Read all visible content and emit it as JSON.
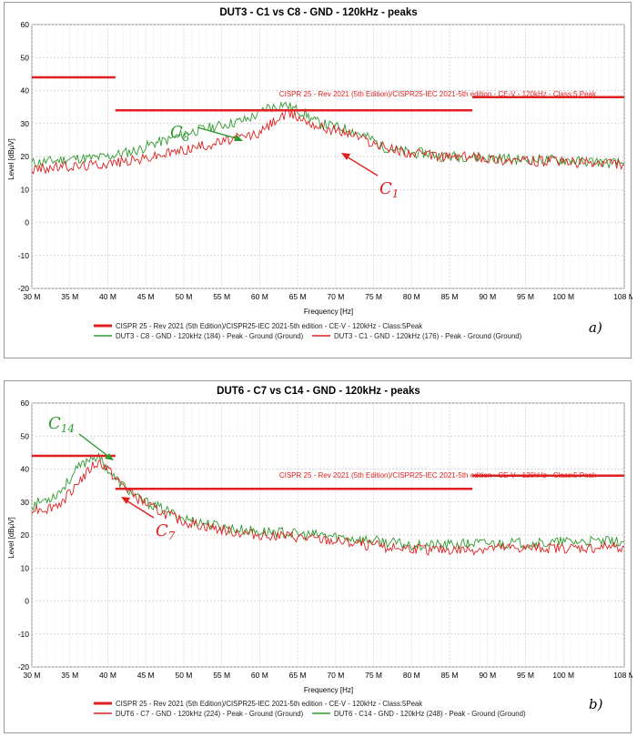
{
  "chart_data": [
    {
      "type": "line",
      "title": "DUT3 - C1 vs C8 - GND - 120kHz - peaks",
      "xlabel": "Frequency [Hz]",
      "ylabel": "Level [dBµV]",
      "xlim": [
        30,
        108
      ],
      "ylim": [
        -20,
        60
      ],
      "x_ticks": [
        30,
        35,
        40,
        45,
        50,
        55,
        60,
        65,
        70,
        75,
        80,
        85,
        90,
        95,
        100,
        108
      ],
      "x_tick_labels": [
        "30 M",
        "35 M",
        "40 M",
        "45 M",
        "50 M",
        "55 M",
        "60 M",
        "65 M",
        "70 M",
        "75 M",
        "80 M",
        "85 M",
        "90 M",
        "95 M",
        "100 M",
        "108 M"
      ],
      "y_ticks": [
        -20,
        -10,
        0,
        10,
        20,
        30,
        40,
        50,
        60
      ],
      "y_tick_labels": [
        "-20",
        "-10",
        "0",
        "10",
        "20",
        "30",
        "40",
        "50",
        "60"
      ],
      "grid": true,
      "limit_label": "CISPR 25 - Rev 2021 (5th Edition)/CISPR25-IEC 2021-5th edition - CE-V - 120kHz - Class:5 Peak",
      "limit_segments": [
        {
          "x": [
            30,
            41
          ],
          "y": [
            44,
            44
          ]
        },
        {
          "x": [
            41,
            88
          ],
          "y": [
            34,
            34
          ]
        },
        {
          "x": [
            88,
            108
          ],
          "y": [
            38,
            38
          ]
        }
      ],
      "series": [
        {
          "name": "DUT3 - C8 - GND - 120kHz (184) - Peak - Ground (Ground)",
          "color": "#2e9a2e",
          "x": [
            30,
            32,
            34,
            36,
            38,
            40,
            42,
            44,
            46,
            48,
            50,
            52,
            54,
            56,
            58,
            60,
            61,
            62,
            63,
            64,
            65,
            66,
            67,
            68,
            70,
            72,
            74,
            75,
            76,
            78,
            80,
            82,
            84,
            86,
            88,
            90,
            92,
            94,
            96,
            98,
            100,
            102,
            104,
            106,
            108
          ],
          "y": [
            18,
            18.5,
            19,
            19.5,
            19.5,
            20,
            21,
            22,
            24,
            25,
            27,
            28,
            29,
            30,
            31,
            33,
            35,
            35,
            36,
            35,
            34,
            33,
            31,
            30,
            29,
            28,
            26,
            25,
            23,
            22,
            21,
            21,
            20,
            20,
            20,
            19.5,
            19.5,
            19,
            19,
            19,
            19,
            18.5,
            18.5,
            18,
            18
          ]
        },
        {
          "name": "DUT3 - C1 - GND - 120kHz (176) - Peak - Ground (Ground)",
          "color": "#e02020",
          "x": [
            30,
            32,
            34,
            36,
            38,
            40,
            42,
            44,
            46,
            48,
            50,
            52,
            54,
            56,
            58,
            60,
            61,
            62,
            63,
            64,
            65,
            66,
            67,
            68,
            70,
            72,
            74,
            75,
            76,
            78,
            80,
            82,
            84,
            86,
            88,
            90,
            92,
            94,
            96,
            98,
            100,
            102,
            104,
            106,
            108
          ],
          "y": [
            16,
            16.5,
            17,
            17,
            17.5,
            18,
            18.5,
            19,
            20,
            21,
            22,
            23,
            24,
            25,
            26,
            27,
            29,
            31,
            32,
            33,
            32,
            31,
            30,
            29,
            28,
            27,
            25,
            24,
            23,
            22,
            21,
            20.5,
            20,
            20,
            20,
            19.5,
            19,
            19,
            18.5,
            18.5,
            18.5,
            18,
            18,
            18,
            17.5
          ]
        }
      ],
      "legend_placement": "bottom",
      "legend_limit_text": "CISPR 25 - Rev 2021 (5th Edition)/CISPR25-IEC 2021-5th edition - CE-V - 120kHz - Class:5Peak",
      "annotations": [
        {
          "label": "C",
          "sub": "8",
          "color": "#2e9a2e"
        },
        {
          "label": "C",
          "sub": "1",
          "color": "#e02020"
        }
      ],
      "panel_tag": "a)"
    },
    {
      "type": "line",
      "title": "DUT6 - C7 vs C14 - GND - 120kHz - peaks",
      "xlabel": "Frequency [Hz]",
      "ylabel": "Level [dBµV]",
      "xlim": [
        30,
        108
      ],
      "ylim": [
        -20,
        60
      ],
      "x_ticks": [
        30,
        35,
        40,
        45,
        50,
        55,
        60,
        65,
        70,
        75,
        80,
        85,
        90,
        95,
        100,
        108
      ],
      "x_tick_labels": [
        "30 M",
        "35 M",
        "40 M",
        "45 M",
        "50 M",
        "55 M",
        "60 M",
        "65 M",
        "70 M",
        "75 M",
        "80 M",
        "85 M",
        "90 M",
        "95 M",
        "100 M",
        "108 M"
      ],
      "y_ticks": [
        -20,
        -10,
        0,
        10,
        20,
        30,
        40,
        50,
        60
      ],
      "y_tick_labels": [
        "-20",
        "-10",
        "0",
        "10",
        "20",
        "30",
        "40",
        "50",
        "60"
      ],
      "grid": true,
      "limit_label": "CISPR 25 - Rev 2021 (5th Edition)/CISPR25-IEC 2021-5th edition - CE-V - 120kHz - Class:5 Peak",
      "limit_segments": [
        {
          "x": [
            30,
            41
          ],
          "y": [
            44,
            44
          ]
        },
        {
          "x": [
            41,
            88
          ],
          "y": [
            34,
            34
          ]
        },
        {
          "x": [
            88,
            108
          ],
          "y": [
            38,
            38
          ]
        }
      ],
      "series": [
        {
          "name": "DUT6 - C14 - GND - 120kHz (248) - Peak - Ground (Ground)",
          "color": "#2e9a2e",
          "x": [
            30,
            31,
            32,
            33,
            34,
            35,
            36,
            37,
            38,
            39,
            40,
            41,
            42,
            43,
            44,
            46,
            48,
            50,
            52,
            54,
            56,
            58,
            60,
            62,
            64,
            66,
            68,
            70,
            72,
            74,
            76,
            78,
            80,
            82,
            84,
            86,
            88,
            90,
            92,
            94,
            96,
            98,
            100,
            102,
            104,
            106,
            108
          ],
          "y": [
            29,
            30,
            31,
            32,
            34,
            37,
            40,
            42,
            44,
            43,
            40,
            37,
            35,
            33,
            31,
            29,
            27,
            25,
            24,
            23,
            22,
            21.5,
            21,
            21,
            20.5,
            20,
            20,
            19.5,
            19,
            18.5,
            18,
            17.5,
            17,
            17,
            17,
            17,
            17.5,
            17.5,
            17.5,
            17.5,
            17.5,
            17.5,
            18,
            18,
            18,
            18,
            18
          ]
        },
        {
          "name": "DUT6 - C7 - GND - 120kHz (224) - Peak - Ground (Ground)",
          "color": "#e02020",
          "x": [
            30,
            31,
            32,
            33,
            34,
            35,
            36,
            37,
            38,
            39,
            40,
            41,
            42,
            43,
            44,
            46,
            48,
            50,
            52,
            54,
            56,
            58,
            60,
            62,
            64,
            66,
            68,
            70,
            72,
            74,
            76,
            78,
            80,
            82,
            84,
            86,
            88,
            90,
            92,
            94,
            96,
            98,
            100,
            102,
            104,
            106,
            108
          ],
          "y": [
            28,
            28,
            28,
            29,
            30,
            33,
            36,
            38,
            41,
            42,
            40,
            37,
            35,
            33,
            31,
            28,
            26,
            24,
            23,
            22,
            21,
            20.5,
            20,
            20,
            19.5,
            19,
            18.5,
            18,
            17.5,
            17,
            16.5,
            16,
            16,
            15.5,
            15.5,
            15.5,
            15.5,
            16,
            16,
            16,
            16,
            16,
            16,
            16,
            16,
            16.5,
            16.5
          ]
        }
      ],
      "legend_placement": "bottom",
      "legend_limit_text": "CISPR 25 - Rev 2021 (5th Edition)/CISPR25-IEC 2021-5th edition - CE-V - 120kHz - Class:5Peak",
      "annotations": [
        {
          "label": "C",
          "sub": "14",
          "color": "#2e9a2e"
        },
        {
          "label": "C",
          "sub": "7",
          "color": "#e02020"
        }
      ],
      "panel_tag": "b)"
    }
  ]
}
